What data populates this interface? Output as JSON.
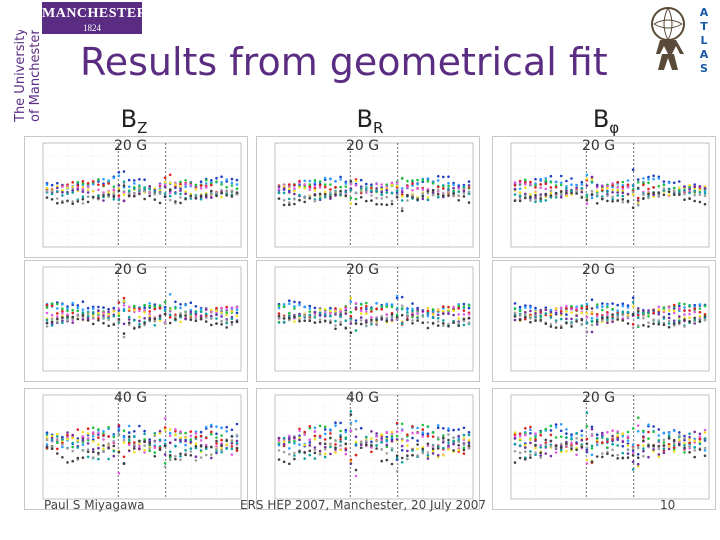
{
  "header": {
    "title": "Results from geometrical fit",
    "university_logo": "MANCHESTER 1824",
    "university_side": "The University of Manchester",
    "atlas_letters": [
      "A",
      "T",
      "L",
      "A",
      "S"
    ]
  },
  "columns": [
    {
      "main": "B",
      "sub": "Z"
    },
    {
      "main": "B",
      "sub": "R"
    },
    {
      "main": "B",
      "sub": "φ"
    }
  ],
  "panels": [
    {
      "row": 0,
      "col": 0,
      "scale": "20 G"
    },
    {
      "row": 0,
      "col": 1,
      "scale": "20 G"
    },
    {
      "row": 0,
      "col": 2,
      "scale": "20 G"
    },
    {
      "row": 1,
      "col": 0,
      "scale": "20 G"
    },
    {
      "row": 1,
      "col": 1,
      "scale": "20 G"
    },
    {
      "row": 1,
      "col": 2,
      "scale": "20 G"
    },
    {
      "row": 2,
      "col": 0,
      "scale": "40 G"
    },
    {
      "row": 2,
      "col": 1,
      "scale": "40 G"
    },
    {
      "row": 2,
      "col": 2,
      "scale": "20 G"
    }
  ],
  "footer": {
    "author": "Paul S Miyagawa",
    "event": "ERS HEP 2007, Manchester, 20 July 2007",
    "page": "10"
  },
  "colors": {
    "brand_purple": "#5b2d82",
    "series": [
      "#1f3fbf",
      "#2fa0ff",
      "#20c040",
      "#e02020",
      "#e060e0",
      "#f0e020",
      "#7030a0",
      "#10a0a0",
      "#a0a0a0",
      "#404040"
    ]
  }
}
